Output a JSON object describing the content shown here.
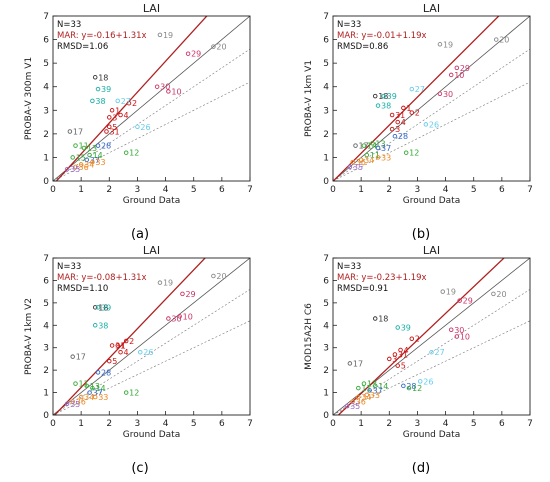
{
  "chart_data": [
    {
      "type": "scatter",
      "panel_label": "(a)",
      "title": "LAI",
      "xlabel": "Ground Data",
      "ylabel": "PROBA-V 300m V1",
      "xlim": [
        0,
        7
      ],
      "ylim": [
        0,
        7
      ],
      "xticks": [
        "0",
        "1",
        "2",
        "3",
        "4",
        "5",
        "6",
        "7"
      ],
      "yticks": [
        "0",
        "1",
        "2",
        "3",
        "4",
        "5",
        "6",
        "7"
      ],
      "grid": false,
      "stats": {
        "n": "N=33",
        "fit": "MAR: y=-0.16+1.31x",
        "rmsd": "RMSD=1.06"
      },
      "fit_line": {
        "intercept": -0.16,
        "slope": 1.31
      },
      "points": [
        {
          "x": 1.5,
          "y": 4.4,
          "label": "18",
          "color": "#333333"
        },
        {
          "x": 3.8,
          "y": 6.2,
          "label": "19",
          "color": "#888888"
        },
        {
          "x": 5.7,
          "y": 5.7,
          "label": "20",
          "color": "#888888"
        },
        {
          "x": 1.6,
          "y": 3.9,
          "label": "39",
          "color": "#19b0a6"
        },
        {
          "x": 1.4,
          "y": 3.4,
          "label": "38",
          "color": "#19b0a6"
        },
        {
          "x": 2.7,
          "y": 3.3,
          "label": "2",
          "color": "#cc1111"
        },
        {
          "x": 2.1,
          "y": 3.0,
          "label": "1",
          "color": "#cc1111"
        },
        {
          "x": 2.4,
          "y": 2.8,
          "label": "4",
          "color": "#cc1111"
        },
        {
          "x": 2.0,
          "y": 2.7,
          "label": "3",
          "color": "#cc1111"
        },
        {
          "x": 2.3,
          "y": 3.4,
          "label": "27",
          "color": "#66ccee"
        },
        {
          "x": 3.7,
          "y": 4.0,
          "label": "30",
          "color": "#cc3366"
        },
        {
          "x": 4.1,
          "y": 3.8,
          "label": "10",
          "color": "#cc3366"
        },
        {
          "x": 4.8,
          "y": 5.4,
          "label": "29",
          "color": "#cc3366"
        },
        {
          "x": 2.0,
          "y": 2.3,
          "label": "5",
          "color": "#cc1111"
        },
        {
          "x": 1.9,
          "y": 2.1,
          "label": "31",
          "color": "#cc1111"
        },
        {
          "x": 3.0,
          "y": 2.3,
          "label": "26",
          "color": "#66ccee"
        },
        {
          "x": 0.6,
          "y": 2.1,
          "label": "17",
          "color": "#666666"
        },
        {
          "x": 1.6,
          "y": 1.5,
          "label": "28",
          "color": "#3366cc"
        },
        {
          "x": 2.6,
          "y": 1.2,
          "label": "12",
          "color": "#33aa33"
        },
        {
          "x": 0.8,
          "y": 1.5,
          "label": "11",
          "color": "#33aa33"
        },
        {
          "x": 1.1,
          "y": 1.4,
          "label": "13",
          "color": "#33aa33"
        },
        {
          "x": 1.3,
          "y": 1.1,
          "label": "14",
          "color": "#33aa33"
        },
        {
          "x": 1.2,
          "y": 0.9,
          "label": "37",
          "color": "#3366cc"
        },
        {
          "x": 1.4,
          "y": 0.8,
          "label": "33",
          "color": "#ee8822"
        },
        {
          "x": 1.0,
          "y": 0.7,
          "label": "34",
          "color": "#ee8822"
        },
        {
          "x": 0.8,
          "y": 0.6,
          "label": "36",
          "color": "#ee8822"
        },
        {
          "x": 0.5,
          "y": 0.5,
          "label": "35",
          "color": "#9966cc"
        },
        {
          "x": 0.7,
          "y": 1.0,
          "label": "15",
          "color": "#33aa33"
        }
      ]
    },
    {
      "type": "scatter",
      "panel_label": "(b)",
      "title": "LAI",
      "xlabel": "Ground Data",
      "ylabel": "PROBA-V 1km V1",
      "xlim": [
        0,
        7
      ],
      "ylim": [
        0,
        7
      ],
      "xticks": [
        "0",
        "1",
        "2",
        "3",
        "4",
        "5",
        "6",
        "7"
      ],
      "yticks": [
        "0",
        "1",
        "2",
        "3",
        "4",
        "5",
        "6",
        "7"
      ],
      "grid": false,
      "stats": {
        "n": "N=33",
        "fit": "MAR: y=-0.01+1.19x",
        "rmsd": "RMSD=0.86"
      },
      "fit_line": {
        "intercept": -0.01,
        "slope": 1.19
      },
      "points": [
        {
          "x": 1.5,
          "y": 3.6,
          "label": "18",
          "color": "#333333"
        },
        {
          "x": 3.8,
          "y": 5.8,
          "label": "19",
          "color": "#888888"
        },
        {
          "x": 5.8,
          "y": 6.0,
          "label": "20",
          "color": "#888888"
        },
        {
          "x": 4.4,
          "y": 4.8,
          "label": "29",
          "color": "#cc3366"
        },
        {
          "x": 4.2,
          "y": 4.5,
          "label": "10",
          "color": "#cc3366"
        },
        {
          "x": 3.8,
          "y": 3.7,
          "label": "30",
          "color": "#cc3366"
        },
        {
          "x": 1.8,
          "y": 3.6,
          "label": "39",
          "color": "#19b0a6"
        },
        {
          "x": 1.6,
          "y": 3.2,
          "label": "38",
          "color": "#19b0a6"
        },
        {
          "x": 2.8,
          "y": 3.9,
          "label": "27",
          "color": "#66ccee"
        },
        {
          "x": 2.5,
          "y": 3.1,
          "label": "1",
          "color": "#cc1111"
        },
        {
          "x": 2.8,
          "y": 2.9,
          "label": "2",
          "color": "#cc1111"
        },
        {
          "x": 2.1,
          "y": 2.8,
          "label": "31",
          "color": "#cc1111"
        },
        {
          "x": 2.3,
          "y": 2.5,
          "label": "4",
          "color": "#cc1111"
        },
        {
          "x": 2.1,
          "y": 2.2,
          "label": "3",
          "color": "#cc1111"
        },
        {
          "x": 3.3,
          "y": 2.4,
          "label": "26",
          "color": "#66ccee"
        },
        {
          "x": 2.2,
          "y": 1.9,
          "label": "28",
          "color": "#3366cc"
        },
        {
          "x": 2.6,
          "y": 1.2,
          "label": "12",
          "color": "#33aa33"
        },
        {
          "x": 0.8,
          "y": 1.5,
          "label": "17",
          "color": "#666666"
        },
        {
          "x": 1.1,
          "y": 1.5,
          "label": "14",
          "color": "#33aa33"
        },
        {
          "x": 1.4,
          "y": 1.6,
          "label": "13",
          "color": "#33aa33"
        },
        {
          "x": 1.6,
          "y": 1.4,
          "label": "37",
          "color": "#3366cc"
        },
        {
          "x": 1.2,
          "y": 1.1,
          "label": "11",
          "color": "#33aa33"
        },
        {
          "x": 1.6,
          "y": 1.0,
          "label": "33",
          "color": "#ee8822"
        },
        {
          "x": 1.0,
          "y": 0.9,
          "label": "34",
          "color": "#ee8822"
        },
        {
          "x": 0.7,
          "y": 0.8,
          "label": "36",
          "color": "#ee8822"
        },
        {
          "x": 0.6,
          "y": 0.6,
          "label": "35",
          "color": "#9966cc"
        }
      ]
    },
    {
      "type": "scatter",
      "panel_label": "(c)",
      "title": "LAI",
      "xlabel": "Ground Data",
      "ylabel": "PROBA-V 1km V2",
      "xlim": [
        0,
        7
      ],
      "ylim": [
        0,
        7
      ],
      "xticks": [
        "0",
        "1",
        "2",
        "3",
        "4",
        "5",
        "6",
        "7"
      ],
      "yticks": [
        "0",
        "1",
        "2",
        "3",
        "4",
        "5",
        "6",
        "7"
      ],
      "grid": false,
      "stats": {
        "n": "N=33",
        "fit": "MAR: y=-0.08+1.31x",
        "rmsd": "RMSD=1.10"
      },
      "fit_line": {
        "intercept": -0.08,
        "slope": 1.31
      },
      "points": [
        {
          "x": 1.5,
          "y": 4.8,
          "label": "18",
          "color": "#333333"
        },
        {
          "x": 3.8,
          "y": 5.9,
          "label": "19",
          "color": "#888888"
        },
        {
          "x": 5.7,
          "y": 6.2,
          "label": "20",
          "color": "#888888"
        },
        {
          "x": 1.6,
          "y": 4.8,
          "label": "39",
          "color": "#19b0a6"
        },
        {
          "x": 4.6,
          "y": 5.4,
          "label": "29",
          "color": "#cc3366"
        },
        {
          "x": 4.5,
          "y": 4.4,
          "label": "10",
          "color": "#cc3366"
        },
        {
          "x": 4.1,
          "y": 4.3,
          "label": "30",
          "color": "#cc3366"
        },
        {
          "x": 1.5,
          "y": 4.0,
          "label": "38",
          "color": "#19b0a6"
        },
        {
          "x": 2.6,
          "y": 3.3,
          "label": "2",
          "color": "#cc1111"
        },
        {
          "x": 2.1,
          "y": 3.1,
          "label": "31",
          "color": "#cc1111"
        },
        {
          "x": 2.3,
          "y": 3.1,
          "label": "1",
          "color": "#cc1111"
        },
        {
          "x": 2.4,
          "y": 2.8,
          "label": "4",
          "color": "#cc1111"
        },
        {
          "x": 3.1,
          "y": 2.8,
          "label": "26",
          "color": "#66ccee"
        },
        {
          "x": 2.0,
          "y": 2.4,
          "label": "5",
          "color": "#cc1111"
        },
        {
          "x": 0.7,
          "y": 2.6,
          "label": "17",
          "color": "#666666"
        },
        {
          "x": 1.6,
          "y": 1.9,
          "label": "28",
          "color": "#3366cc"
        },
        {
          "x": 2.6,
          "y": 1.0,
          "label": "12",
          "color": "#33aa33"
        },
        {
          "x": 0.8,
          "y": 1.4,
          "label": "11",
          "color": "#33aa33"
        },
        {
          "x": 1.2,
          "y": 1.3,
          "label": "13",
          "color": "#33aa33"
        },
        {
          "x": 1.4,
          "y": 1.2,
          "label": "14",
          "color": "#33aa33"
        },
        {
          "x": 1.3,
          "y": 1.0,
          "label": "37",
          "color": "#3366cc"
        },
        {
          "x": 1.5,
          "y": 0.8,
          "label": "33",
          "color": "#ee8822"
        },
        {
          "x": 1.0,
          "y": 0.8,
          "label": "34",
          "color": "#ee8822"
        },
        {
          "x": 0.7,
          "y": 0.6,
          "label": "36",
          "color": "#ee8822"
        },
        {
          "x": 0.5,
          "y": 0.5,
          "label": "35",
          "color": "#9966cc"
        }
      ]
    },
    {
      "type": "scatter",
      "panel_label": "(d)",
      "title": "LAI",
      "xlabel": "Ground Data",
      "ylabel": "MOD15A2H C6",
      "xlim": [
        0,
        7
      ],
      "ylim": [
        0,
        7
      ],
      "xticks": [
        "0",
        "1",
        "2",
        "3",
        "4",
        "5",
        "6",
        "7"
      ],
      "yticks": [
        "0",
        "1",
        "2",
        "3",
        "4",
        "5",
        "6",
        "7"
      ],
      "grid": false,
      "stats": {
        "n": "N=33",
        "fit": "MAR: y=-0.23+1.19x",
        "rmsd": "RMSD=0.91"
      },
      "fit_line": {
        "intercept": -0.23,
        "slope": 1.19
      },
      "points": [
        {
          "x": 1.5,
          "y": 4.3,
          "label": "18",
          "color": "#333333"
        },
        {
          "x": 3.9,
          "y": 5.5,
          "label": "19",
          "color": "#888888"
        },
        {
          "x": 5.7,
          "y": 5.4,
          "label": "20",
          "color": "#888888"
        },
        {
          "x": 4.5,
          "y": 5.1,
          "label": "29",
          "color": "#cc3366"
        },
        {
          "x": 4.2,
          "y": 3.8,
          "label": "30",
          "color": "#cc3366"
        },
        {
          "x": 4.4,
          "y": 3.5,
          "label": "10",
          "color": "#cc3366"
        },
        {
          "x": 2.3,
          "y": 3.9,
          "label": "39",
          "color": "#19b0a6"
        },
        {
          "x": 2.8,
          "y": 3.4,
          "label": "2",
          "color": "#cc1111"
        },
        {
          "x": 2.4,
          "y": 2.9,
          "label": "4",
          "color": "#cc1111"
        },
        {
          "x": 2.2,
          "y": 2.7,
          "label": "31",
          "color": "#cc1111"
        },
        {
          "x": 3.5,
          "y": 2.8,
          "label": "27",
          "color": "#66ccee"
        },
        {
          "x": 2.0,
          "y": 2.5,
          "label": "3",
          "color": "#cc1111"
        },
        {
          "x": 2.3,
          "y": 2.2,
          "label": "5",
          "color": "#cc1111"
        },
        {
          "x": 0.6,
          "y": 2.3,
          "label": "17",
          "color": "#666666"
        },
        {
          "x": 3.1,
          "y": 1.5,
          "label": "26",
          "color": "#66ccee"
        },
        {
          "x": 2.5,
          "y": 1.3,
          "label": "28",
          "color": "#3366cc"
        },
        {
          "x": 2.7,
          "y": 1.2,
          "label": "12",
          "color": "#33aa33"
        },
        {
          "x": 1.1,
          "y": 1.4,
          "label": "13",
          "color": "#33aa33"
        },
        {
          "x": 1.5,
          "y": 1.3,
          "label": "14",
          "color": "#33aa33"
        },
        {
          "x": 1.3,
          "y": 1.1,
          "label": "37",
          "color": "#3366cc"
        },
        {
          "x": 0.9,
          "y": 1.2,
          "label": "11",
          "color": "#33aa33"
        },
        {
          "x": 1.2,
          "y": 0.9,
          "label": "33",
          "color": "#ee8822"
        },
        {
          "x": 0.9,
          "y": 0.8,
          "label": "34",
          "color": "#ee8822"
        },
        {
          "x": 0.7,
          "y": 0.6,
          "label": "36",
          "color": "#ee8822"
        },
        {
          "x": 0.5,
          "y": 0.4,
          "label": "35",
          "color": "#9966cc"
        }
      ]
    }
  ]
}
